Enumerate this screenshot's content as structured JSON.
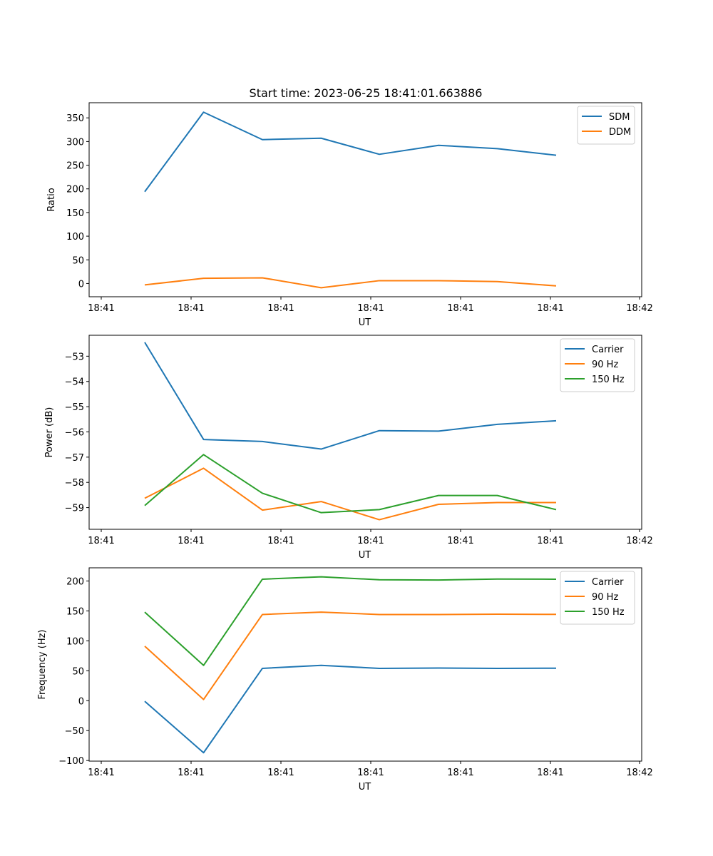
{
  "figure": {
    "title": "Start time: 2023-06-25 18:41:01.663886"
  },
  "colors": {
    "series1": "#1f77b4",
    "series2": "#ff7f0e",
    "series3": "#2ca02c"
  },
  "chart_data": [
    {
      "type": "line",
      "title": "Start time: 2023-06-25 18:41:01.663886",
      "xlabel": "UT",
      "ylabel": "Ratio",
      "x_tick_labels": [
        "18:41",
        "18:41",
        "18:41",
        "18:41",
        "18:41",
        "18:41",
        "18:42"
      ],
      "y_ticks": [
        0,
        50,
        100,
        150,
        200,
        250,
        300,
        350
      ],
      "ylim": [
        -28,
        382
      ],
      "legend_position": "upper right",
      "series": [
        {
          "name": "SDM",
          "color": "#1f77b4",
          "values": [
            194,
            362,
            304,
            307,
            273,
            292,
            285,
            271
          ]
        },
        {
          "name": "DDM",
          "color": "#ff7f0e",
          "values": [
            -3,
            11,
            12,
            -9,
            6,
            6,
            4,
            -5
          ]
        }
      ]
    },
    {
      "type": "line",
      "title": "",
      "xlabel": "UT",
      "ylabel": "Power (dB)",
      "x_tick_labels": [
        "18:41",
        "18:41",
        "18:41",
        "18:41",
        "18:41",
        "18:41",
        "18:42"
      ],
      "y_ticks": [
        -59,
        -58,
        -57,
        -56,
        -55,
        -54,
        -53
      ],
      "y_tick_labels": [
        "−59",
        "−58",
        "−57",
        "−56",
        "−55",
        "−54",
        "−53"
      ],
      "ylim": [
        -59.86,
        -52.17
      ],
      "legend_position": "upper right",
      "series": [
        {
          "name": "Carrier",
          "color": "#1f77b4",
          "values": [
            -52.45,
            -56.3,
            -56.38,
            -56.68,
            -55.95,
            -55.97,
            -55.7,
            -55.56
          ]
        },
        {
          "name": "90 Hz",
          "color": "#ff7f0e",
          "values": [
            -58.63,
            -57.44,
            -59.1,
            -58.76,
            -59.48,
            -58.87,
            -58.8,
            -58.8
          ]
        },
        {
          "name": "150 Hz",
          "color": "#2ca02c",
          "values": [
            -58.92,
            -56.9,
            -58.43,
            -59.2,
            -59.08,
            -58.52,
            -58.52,
            -59.08
          ]
        }
      ]
    },
    {
      "type": "line",
      "title": "",
      "xlabel": "UT",
      "ylabel": "Frequency (Hz)",
      "x_tick_labels": [
        "18:41",
        "18:41",
        "18:41",
        "18:41",
        "18:41",
        "18:41",
        "18:42"
      ],
      "y_ticks": [
        -100,
        -50,
        0,
        50,
        100,
        150,
        200
      ],
      "y_tick_labels": [
        "−100",
        "−50",
        "0",
        "50",
        "100",
        "150",
        "200"
      ],
      "ylim": [
        -101,
        222
      ],
      "legend_position": "upper right",
      "series": [
        {
          "name": "Carrier",
          "color": "#1f77b4",
          "values": [
            -1,
            -87,
            54,
            59,
            54,
            54.5,
            54,
            54.3
          ]
        },
        {
          "name": "90 Hz",
          "color": "#ff7f0e",
          "values": [
            91,
            2,
            144,
            148,
            144,
            144,
            144.5,
            144.2
          ]
        },
        {
          "name": "150 Hz",
          "color": "#2ca02c",
          "values": [
            148,
            59,
            203,
            207,
            202,
            201.6,
            203.2,
            203
          ]
        }
      ]
    }
  ]
}
